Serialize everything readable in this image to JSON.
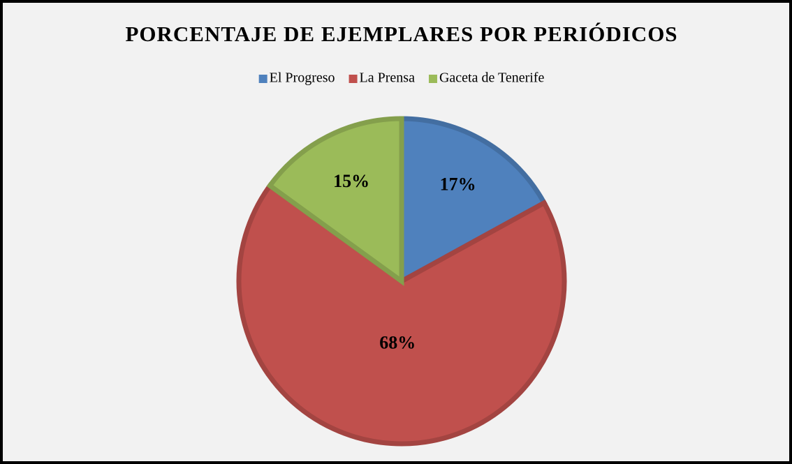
{
  "chart_data": {
    "type": "pie",
    "title": "PORCENTAJE DE EJEMPLARES POR PERIÓDICOS",
    "categories": [
      "El Progreso",
      "La Prensa",
      "Gaceta de Tenerife"
    ],
    "values": [
      17,
      68,
      15
    ],
    "value_labels": [
      "17%",
      "68%",
      "15%"
    ],
    "colors": [
      "#4f81bd",
      "#c0504d",
      "#9bbb59"
    ],
    "legend": "top"
  }
}
